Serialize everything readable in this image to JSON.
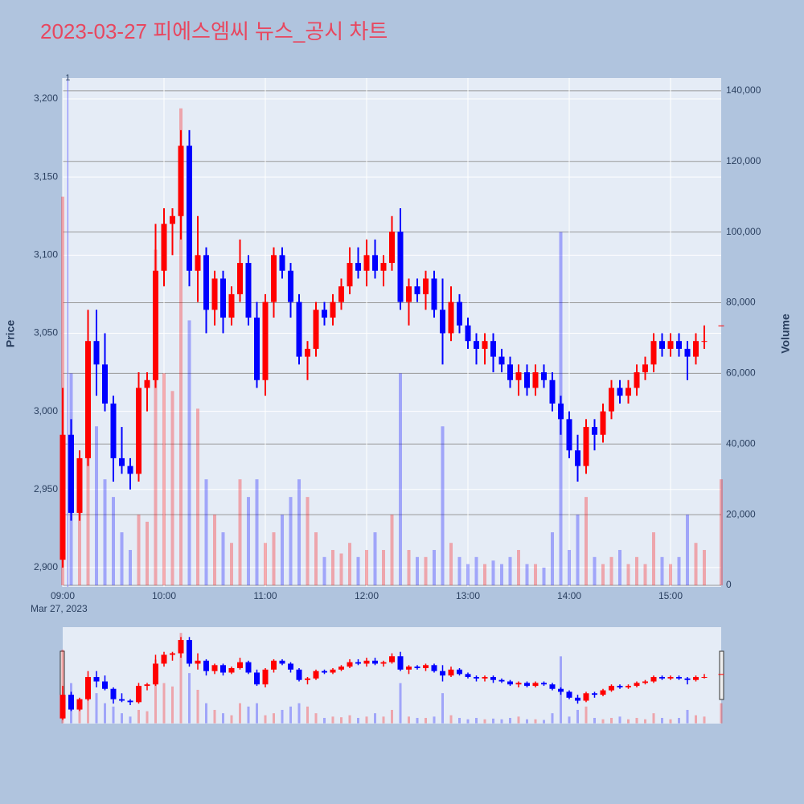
{
  "chart_data": {
    "type": "candlestick",
    "title": "2023-03-27 피에스엠씨 뉴스_공시 차트",
    "ylabel": "Price",
    "y2label": "Volume",
    "x_date_label": "Mar 27, 2023",
    "annotation": {
      "x": "09:03",
      "text": "1"
    },
    "up_color": "#ff0000",
    "down_color": "#0000ff",
    "x": [
      "09:00",
      "09:05",
      "09:10",
      "09:15",
      "09:20",
      "09:25",
      "09:30",
      "09:35",
      "09:40",
      "09:45",
      "09:50",
      "09:55",
      "10:00",
      "10:05",
      "10:10",
      "10:15",
      "10:20",
      "10:25",
      "10:30",
      "10:35",
      "10:40",
      "10:45",
      "10:50",
      "10:55",
      "11:00",
      "11:05",
      "11:10",
      "11:15",
      "11:20",
      "11:25",
      "11:30",
      "11:35",
      "11:40",
      "11:45",
      "11:50",
      "11:55",
      "12:00",
      "12:05",
      "12:10",
      "12:15",
      "12:20",
      "12:25",
      "12:30",
      "12:35",
      "12:40",
      "12:45",
      "12:50",
      "12:55",
      "13:00",
      "13:05",
      "13:10",
      "13:15",
      "13:20",
      "13:25",
      "13:30",
      "13:35",
      "13:40",
      "13:45",
      "13:50",
      "13:55",
      "14:00",
      "14:05",
      "14:10",
      "14:15",
      "14:20",
      "14:25",
      "14:30",
      "14:35",
      "14:40",
      "14:45",
      "14:50",
      "14:55",
      "15:00",
      "15:05",
      "15:10",
      "15:15",
      "15:20",
      "15:30"
    ],
    "open": [
      2905,
      2985,
      2935,
      2970,
      3045,
      3030,
      3005,
      2970,
      2965,
      2960,
      3015,
      3020,
      3090,
      3120,
      3125,
      3170,
      3090,
      3100,
      3065,
      3085,
      3060,
      3075,
      3095,
      3060,
      3020,
      3070,
      3100,
      3090,
      3070,
      3035,
      3040,
      3065,
      3060,
      3070,
      3080,
      3095,
      3090,
      3100,
      3090,
      3095,
      3115,
      3070,
      3080,
      3075,
      3085,
      3065,
      3050,
      3070,
      3055,
      3045,
      3040,
      3045,
      3035,
      3030,
      3020,
      3025,
      3015,
      3025,
      3020,
      3005,
      2995,
      2975,
      2965,
      2990,
      2985,
      3000,
      3015,
      3010,
      3015,
      3025,
      3030,
      3045,
      3040,
      3045,
      3040,
      3035,
      3045,
      3055
    ],
    "high": [
      3015,
      2995,
      2975,
      3065,
      3065,
      3050,
      3010,
      2990,
      2970,
      3025,
      3025,
      3120,
      3130,
      3130,
      3180,
      3180,
      3125,
      3105,
      3090,
      3090,
      3080,
      3110,
      3100,
      3070,
      3075,
      3105,
      3105,
      3095,
      3075,
      3045,
      3070,
      3070,
      3075,
      3085,
      3105,
      3105,
      3110,
      3110,
      3100,
      3125,
      3130,
      3085,
      3085,
      3090,
      3090,
      3085,
      3080,
      3075,
      3060,
      3050,
      3050,
      3050,
      3040,
      3035,
      3030,
      3030,
      3030,
      3030,
      3025,
      3010,
      3000,
      2985,
      2995,
      2995,
      3005,
      3020,
      3020,
      3020,
      3030,
      3035,
      3050,
      3050,
      3050,
      3050,
      3045,
      3050,
      3055,
      3055
    ],
    "low": [
      2900,
      2930,
      2930,
      2965,
      3010,
      3000,
      2955,
      2960,
      2950,
      2955,
      3000,
      3015,
      3080,
      3100,
      3110,
      3080,
      3070,
      3050,
      3055,
      3050,
      3055,
      3070,
      3055,
      3015,
      3010,
      3060,
      3085,
      3060,
      3030,
      3020,
      3035,
      3055,
      3055,
      3065,
      3075,
      3085,
      3080,
      3085,
      3080,
      3090,
      3065,
      3055,
      3070,
      3065,
      3060,
      3030,
      3045,
      3050,
      3040,
      3030,
      3030,
      3025,
      3025,
      3015,
      3010,
      3010,
      3010,
      3015,
      3000,
      2985,
      2970,
      2955,
      2960,
      2975,
      2980,
      2995,
      3005,
      3005,
      3010,
      3020,
      3025,
      3035,
      3035,
      3035,
      3020,
      3030,
      3040,
      3055
    ],
    "close": [
      2985,
      2935,
      2970,
      3045,
      3030,
      3005,
      2970,
      2965,
      2960,
      3015,
      3020,
      3090,
      3120,
      3125,
      3170,
      3090,
      3100,
      3065,
      3085,
      3060,
      3075,
      3095,
      3060,
      3020,
      3070,
      3100,
      3090,
      3070,
      3035,
      3040,
      3065,
      3060,
      3070,
      3080,
      3095,
      3090,
      3100,
      3090,
      3095,
      3115,
      3070,
      3080,
      3075,
      3085,
      3065,
      3050,
      3070,
      3055,
      3045,
      3040,
      3045,
      3035,
      3030,
      3020,
      3025,
      3015,
      3025,
      3020,
      3005,
      2995,
      2975,
      2965,
      2990,
      2985,
      3000,
      3015,
      3010,
      3015,
      3025,
      3030,
      3045,
      3040,
      3045,
      3040,
      3035,
      3045,
      3045,
      3055
    ],
    "volume": [
      110000,
      60000,
      30000,
      65000,
      45000,
      30000,
      25000,
      15000,
      10000,
      20000,
      18000,
      95000,
      60000,
      55000,
      135000,
      75000,
      50000,
      30000,
      20000,
      15000,
      12000,
      30000,
      25000,
      30000,
      12000,
      15000,
      20000,
      25000,
      30000,
      25000,
      15000,
      8000,
      10000,
      9000,
      12000,
      8000,
      10000,
      15000,
      10000,
      20000,
      60000,
      10000,
      8000,
      8000,
      10000,
      45000,
      12000,
      8000,
      6000,
      8000,
      6000,
      7000,
      6000,
      8000,
      10000,
      6000,
      6000,
      5000,
      15000,
      100000,
      10000,
      20000,
      25000,
      8000,
      6000,
      8000,
      10000,
      6000,
      8000,
      6000,
      15000,
      8000,
      6000,
      8000,
      20000,
      12000,
      10000,
      30000
    ],
    "xlim": [
      "09:00",
      "15:30"
    ],
    "xticks": [
      "09:00",
      "10:00",
      "11:00",
      "12:00",
      "13:00",
      "14:00",
      "15:00"
    ],
    "ylim": [
      2887.6,
      3213.4
    ],
    "yticks": [
      {
        "value": 2900,
        "label": "2,900"
      },
      {
        "value": 2950,
        "label": "2,950"
      },
      {
        "value": 3000,
        "label": "3,000"
      },
      {
        "value": 3050,
        "label": "3,050"
      },
      {
        "value": 3100,
        "label": "3,100"
      },
      {
        "value": 3150,
        "label": "3,150"
      },
      {
        "value": 3200,
        "label": "3,200"
      }
    ],
    "y2lim": [
      -460,
      143600
    ],
    "y2ticks": [
      0,
      {
        "value": 20000,
        "label": "20,000"
      },
      {
        "value": 40000,
        "label": "40,000"
      },
      {
        "value": 60000,
        "label": "60,000"
      },
      {
        "value": 80000,
        "label": "80,000"
      },
      {
        "value": 100000,
        "label": "100,000"
      },
      {
        "value": 120000,
        "label": "120,000"
      },
      {
        "value": 140000,
        "label": "140,000"
      }
    ]
  }
}
